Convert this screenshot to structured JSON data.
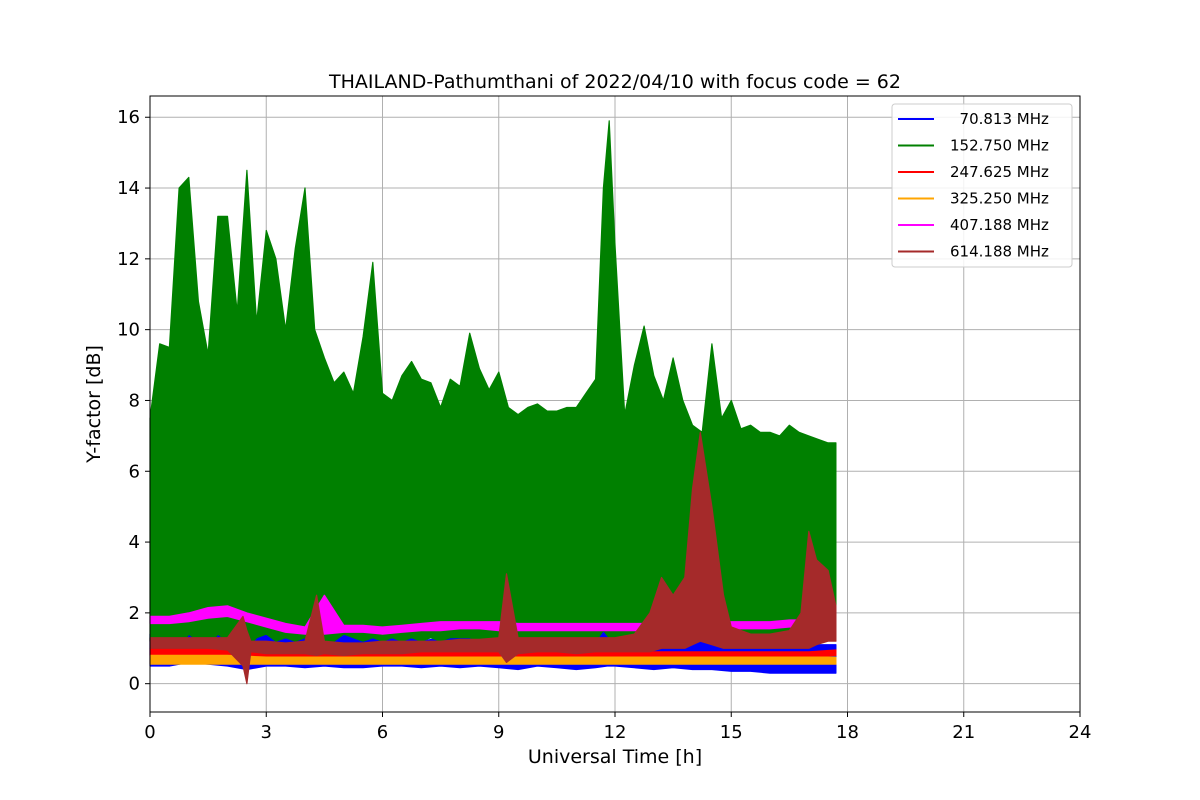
{
  "chart_data": {
    "type": "line",
    "title": "THAILAND-Pathumthani of 2022/04/10 with focus code = 62",
    "xlabel": "Universal Time [h]",
    "ylabel": "Y-factor [dB]",
    "xlim": [
      0,
      24
    ],
    "ylim": [
      -0.8,
      16.6
    ],
    "xticks": [
      0,
      3,
      6,
      9,
      12,
      15,
      18,
      21,
      24
    ],
    "yticks": [
      0,
      2,
      4,
      6,
      8,
      10,
      12,
      14,
      16
    ],
    "grid": true,
    "legend_position": "top-right",
    "series": [
      {
        "name": "  70.813 MHz",
        "color": "#0000ff",
        "x": [
          0,
          0.5,
          1.0,
          1.5,
          2.0,
          2.5,
          3.0,
          3.5,
          4.0,
          4.5,
          5.0,
          5.5,
          6.0,
          6.5,
          7.0,
          7.5,
          8.0,
          8.5,
          9.0,
          9.5,
          10.0,
          10.5,
          11.0,
          11.5,
          11.8,
          12.0,
          12.5,
          13.0,
          13.5,
          14.0,
          14.5,
          15.0,
          15.5,
          16.0,
          16.5,
          17.0,
          17.5,
          17.7
        ],
        "lo": [
          0.5,
          0.5,
          0.6,
          0.55,
          0.5,
          0.4,
          0.5,
          0.5,
          0.45,
          0.5,
          0.45,
          0.45,
          0.5,
          0.5,
          0.45,
          0.5,
          0.45,
          0.5,
          0.45,
          0.4,
          0.5,
          0.45,
          0.4,
          0.45,
          0.5,
          0.5,
          0.45,
          0.4,
          0.45,
          0.4,
          0.4,
          0.35,
          0.35,
          0.3,
          0.3,
          0.3,
          0.3,
          0.3
        ],
        "hi": [
          1.4,
          2.2,
          1.6,
          1.5,
          2.0,
          3.0,
          1.5,
          1.4,
          1.3,
          1.3,
          1.4,
          1.5,
          1.3,
          1.4,
          1.2,
          1.3,
          1.4,
          1.3,
          1.5,
          1.4,
          1.3,
          1.4,
          1.5,
          1.5,
          3.0,
          2.7,
          1.4,
          2.0,
          1.4,
          1.2,
          1.2,
          1.3,
          1.2,
          1.1,
          1.1,
          1.1,
          1.1,
          1.1
        ]
      },
      {
        "name": "152.750 MHz",
        "color": "#008000",
        "x": [
          0,
          0.25,
          0.5,
          0.75,
          1.0,
          1.25,
          1.5,
          1.75,
          2.0,
          2.25,
          2.5,
          2.75,
          3.0,
          3.25,
          3.5,
          3.75,
          4.0,
          4.25,
          4.5,
          4.75,
          5.0,
          5.25,
          5.5,
          5.75,
          6.0,
          6.25,
          6.5,
          6.75,
          7.0,
          7.25,
          7.5,
          7.75,
          8.0,
          8.25,
          8.5,
          8.75,
          9.0,
          9.25,
          9.5,
          9.75,
          10.0,
          10.25,
          10.5,
          10.75,
          11.0,
          11.25,
          11.5,
          11.7,
          11.85,
          12.0,
          12.25,
          12.5,
          12.75,
          13.0,
          13.25,
          13.5,
          13.75,
          14.0,
          14.25,
          14.5,
          14.75,
          15.0,
          15.25,
          15.5,
          15.75,
          16.0,
          16.25,
          16.5,
          16.75,
          17.0,
          17.25,
          17.5,
          17.7
        ],
        "lo": [
          1.2,
          1.0,
          1.2,
          1.0,
          1.4,
          1.2,
          1.0,
          1.4,
          1.2,
          1.2,
          1.0,
          1.3,
          1.4,
          1.2,
          1.3,
          1.2,
          1.3,
          1.4,
          1.2,
          1.2,
          1.4,
          1.3,
          1.2,
          1.3,
          1.2,
          1.3,
          1.2,
          1.3,
          1.2,
          1.3,
          1.2,
          1.3,
          1.3,
          1.3,
          1.2,
          1.3,
          1.3,
          1.2,
          1.3,
          1.3,
          1.2,
          1.3,
          1.3,
          1.2,
          1.3,
          1.2,
          1.2,
          1.5,
          1.3,
          1.3,
          1.2,
          1.3,
          1.3,
          1.2,
          1.3,
          1.2,
          1.3,
          1.2,
          1.3,
          1.3,
          1.3,
          1.3,
          1.2,
          1.3,
          1.3,
          1.3,
          1.2,
          1.3,
          1.3,
          1.2,
          1.2,
          1.3,
          1.3
        ],
        "hi": [
          7.5,
          9.6,
          9.5,
          14.0,
          14.3,
          10.8,
          9.3,
          13.2,
          13.2,
          10.5,
          14.5,
          10.2,
          12.8,
          12.0,
          10.0,
          12.3,
          14.0,
          10.0,
          9.2,
          8.5,
          8.8,
          8.2,
          9.8,
          11.9,
          8.2,
          8.0,
          8.7,
          9.1,
          8.6,
          8.5,
          7.8,
          8.6,
          8.4,
          9.9,
          8.9,
          8.3,
          8.8,
          7.8,
          7.6,
          7.8,
          7.9,
          7.7,
          7.7,
          7.8,
          7.8,
          8.2,
          8.6,
          14.0,
          15.9,
          12.4,
          7.6,
          9.0,
          10.1,
          8.7,
          8.0,
          9.2,
          8.0,
          7.3,
          7.1,
          9.6,
          7.5,
          8.0,
          7.2,
          7.3,
          7.1,
          7.1,
          7.0,
          7.3,
          7.1,
          7.0,
          6.9,
          6.8,
          6.8
        ]
      },
      {
        "name": "247.625 MHz",
        "color": "#ff0000",
        "x": [
          0,
          1,
          2,
          3,
          4,
          5,
          6,
          7,
          8,
          9,
          10,
          11,
          12,
          13,
          14,
          15,
          16,
          17,
          17.7
        ],
        "lo": [
          0.8,
          0.8,
          0.75,
          0.75,
          0.75,
          0.75,
          0.75,
          0.75,
          0.75,
          0.75,
          0.75,
          0.7,
          0.7,
          0.7,
          0.7,
          0.7,
          0.75,
          0.75,
          0.8
        ],
        "hi": [
          1.0,
          1.0,
          0.95,
          0.9,
          0.9,
          0.9,
          0.9,
          0.9,
          0.9,
          0.9,
          0.9,
          0.9,
          0.9,
          0.9,
          0.9,
          0.9,
          0.9,
          0.9,
          0.95
        ]
      },
      {
        "name": "325.250 MHz",
        "color": "#ffa500",
        "x": [
          0,
          1,
          2,
          3,
          4,
          5,
          6,
          7,
          8,
          9,
          10,
          11,
          12,
          13,
          14,
          15,
          16,
          17,
          17.7
        ],
        "lo": [
          0.55,
          0.55,
          0.55,
          0.55,
          0.55,
          0.55,
          0.55,
          0.55,
          0.55,
          0.55,
          0.55,
          0.55,
          0.55,
          0.55,
          0.55,
          0.55,
          0.55,
          0.55,
          0.55
        ],
        "hi": [
          0.8,
          0.8,
          0.8,
          0.75,
          0.75,
          0.75,
          0.75,
          0.75,
          0.75,
          0.75,
          0.75,
          0.75,
          0.75,
          0.75,
          0.75,
          0.75,
          0.75,
          0.75,
          0.75
        ]
      },
      {
        "name": "407.188 MHz",
        "color": "#ff00ff",
        "x": [
          0,
          0.5,
          1.0,
          1.5,
          2.0,
          2.5,
          3.0,
          3.5,
          4.0,
          4.5,
          5.0,
          5.5,
          6.0,
          6.5,
          7.0,
          7.5,
          8.0,
          8.5,
          9.0,
          9.5,
          10.0,
          10.5,
          11.0,
          11.5,
          12.0,
          12.5,
          13.0,
          13.5,
          14.0,
          14.5,
          15.0,
          15.5,
          16.0,
          16.5,
          17.0,
          17.5,
          17.7
        ],
        "lo": [
          1.7,
          1.7,
          1.75,
          1.85,
          1.9,
          1.75,
          1.6,
          1.45,
          1.4,
          1.4,
          1.45,
          1.45,
          1.4,
          1.45,
          1.5,
          1.5,
          1.55,
          1.55,
          1.5,
          1.5,
          1.5,
          1.5,
          1.5,
          1.5,
          1.5,
          1.5,
          1.5,
          1.5,
          1.5,
          1.5,
          1.55,
          1.55,
          1.55,
          1.6,
          1.6,
          1.6,
          1.6
        ],
        "hi": [
          1.9,
          1.9,
          2.0,
          2.15,
          2.2,
          2.0,
          1.85,
          1.7,
          1.6,
          2.5,
          1.65,
          1.65,
          1.6,
          1.65,
          1.7,
          1.75,
          1.75,
          1.75,
          1.75,
          1.7,
          1.7,
          1.7,
          1.7,
          1.7,
          1.7,
          1.7,
          1.7,
          1.7,
          1.7,
          1.7,
          1.75,
          1.75,
          1.75,
          1.8,
          1.8,
          1.85,
          1.85
        ]
      },
      {
        "name": "614.188 MHz",
        "color": "#a52a2a",
        "x": [
          0,
          0.5,
          1.0,
          1.5,
          2.0,
          2.4,
          2.5,
          2.6,
          3.0,
          3.5,
          4.0,
          4.3,
          4.5,
          5.0,
          5.5,
          6.0,
          6.5,
          7.0,
          7.5,
          8.0,
          8.5,
          9.0,
          9.2,
          9.5,
          10.0,
          10.5,
          11.0,
          11.5,
          12.0,
          12.5,
          12.9,
          13.2,
          13.5,
          13.8,
          14.0,
          14.2,
          14.5,
          14.8,
          15.0,
          15.5,
          16.0,
          16.5,
          16.8,
          17.0,
          17.2,
          17.5,
          17.7
        ],
        "lo": [
          1.0,
          1.0,
          1.0,
          1.0,
          0.95,
          0.5,
          0.0,
          0.9,
          0.85,
          0.85,
          0.85,
          0.8,
          0.85,
          0.8,
          0.85,
          0.85,
          0.85,
          0.9,
          0.9,
          0.9,
          0.9,
          0.9,
          0.6,
          0.85,
          0.9,
          0.9,
          0.85,
          0.9,
          0.9,
          0.9,
          0.9,
          1.0,
          1.0,
          1.0,
          1.1,
          1.2,
          1.1,
          1.0,
          1.0,
          1.0,
          1.0,
          1.0,
          1.0,
          1.0,
          1.1,
          1.2,
          1.2
        ],
        "hi": [
          1.3,
          1.3,
          1.3,
          1.3,
          1.3,
          1.9,
          1.5,
          1.2,
          1.2,
          1.15,
          1.2,
          2.5,
          1.2,
          1.15,
          1.15,
          1.2,
          1.2,
          1.2,
          1.2,
          1.25,
          1.25,
          1.3,
          3.1,
          1.3,
          1.3,
          1.3,
          1.3,
          1.3,
          1.3,
          1.4,
          2.0,
          3.0,
          2.5,
          3.0,
          5.5,
          7.1,
          5.0,
          2.5,
          1.6,
          1.4,
          1.4,
          1.5,
          2.0,
          4.3,
          3.5,
          3.2,
          2.2
        ]
      }
    ]
  }
}
